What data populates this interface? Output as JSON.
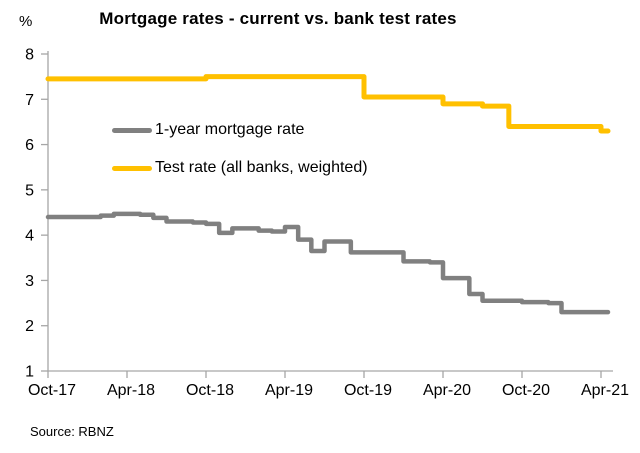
{
  "title": "Mortgage rates - current vs. bank test rates",
  "y_axis_unit_label": "%",
  "source": "Source: RBNZ",
  "colors": {
    "mortgage": "#808080",
    "test": "#FFC000",
    "axis": "#A6A6A6",
    "text": "#000000"
  },
  "legend": [
    {
      "label": "1-year mortgage rate",
      "color": "#808080"
    },
    {
      "label": "Test rate (all banks, weighted)",
      "color": "#FFC000"
    }
  ],
  "chart_data": {
    "type": "line",
    "title": "Mortgage rates - current vs. bank test rates",
    "xlabel": "",
    "ylabel": "%",
    "ylim": [
      1,
      8
    ],
    "y_ticks": [
      1,
      2,
      3,
      4,
      5,
      6,
      7,
      8
    ],
    "x_ticklabels": [
      "Oct-17",
      "Apr-18",
      "Oct-18",
      "Apr-19",
      "Oct-19",
      "Apr-20",
      "Oct-20",
      "Apr-21"
    ],
    "x_tick_month_index": [
      0,
      6,
      12,
      18,
      24,
      30,
      36,
      42
    ],
    "grid": false,
    "legend_position": "upper-left-inside",
    "step_interpolation": true,
    "x_months": [
      "Oct-17",
      "Nov-17",
      "Dec-17",
      "Jan-18",
      "Feb-18",
      "Mar-18",
      "Apr-18",
      "May-18",
      "Jun-18",
      "Jul-18",
      "Aug-18",
      "Sep-18",
      "Oct-18",
      "Nov-18",
      "Dec-18",
      "Jan-19",
      "Feb-19",
      "Mar-19",
      "Apr-19",
      "May-19",
      "Jun-19",
      "Jul-19",
      "Aug-19",
      "Sep-19",
      "Oct-19",
      "Nov-19",
      "Dec-19",
      "Jan-20",
      "Feb-20",
      "Mar-20",
      "Apr-20",
      "May-20",
      "Jun-20",
      "Jul-20",
      "Aug-20",
      "Sep-20",
      "Oct-20",
      "Nov-20",
      "Dec-20",
      "Jan-21",
      "Feb-21",
      "Mar-21",
      "Apr-21"
    ],
    "series": [
      {
        "name": "1-year mortgage rate",
        "color": "#808080",
        "stroke_width": 4.5,
        "values": [
          4.4,
          4.4,
          4.4,
          4.4,
          4.43,
          4.47,
          4.47,
          4.45,
          4.38,
          4.3,
          4.3,
          4.28,
          4.25,
          4.05,
          4.15,
          4.15,
          4.1,
          4.08,
          4.18,
          3.9,
          3.65,
          3.86,
          3.86,
          3.62,
          3.62,
          3.62,
          3.62,
          3.42,
          3.42,
          3.4,
          3.05,
          3.05,
          2.7,
          2.55,
          2.55,
          2.55,
          2.52,
          2.52,
          2.5,
          2.3,
          2.3,
          2.3,
          2.3
        ]
      },
      {
        "name": "Test rate (all banks, weighted)",
        "color": "#FFC000",
        "stroke_width": 5,
        "values": [
          7.45,
          7.45,
          7.45,
          7.45,
          7.45,
          7.45,
          7.45,
          7.45,
          7.45,
          7.45,
          7.45,
          7.45,
          7.5,
          7.5,
          7.5,
          7.5,
          7.5,
          7.5,
          7.5,
          7.5,
          7.5,
          7.5,
          7.5,
          7.5,
          7.05,
          7.05,
          7.05,
          7.05,
          7.05,
          7.05,
          6.9,
          6.9,
          6.9,
          6.85,
          6.85,
          6.4,
          6.4,
          6.4,
          6.4,
          6.4,
          6.4,
          6.4,
          6.3
        ]
      }
    ]
  }
}
